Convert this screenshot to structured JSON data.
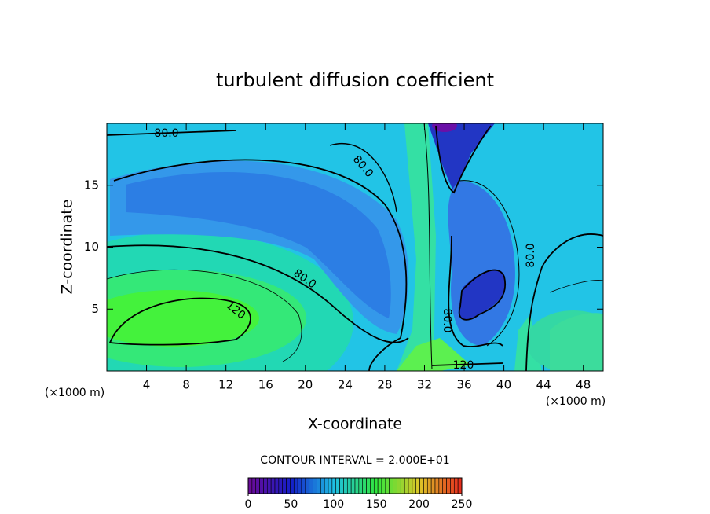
{
  "chart_data": {
    "type": "contour",
    "title": "turbulent diffusion coefficient",
    "x_label": "X-coordinate",
    "y_label": "Z-coordinate",
    "x_unit_labels": [
      "(×1000 m)",
      "(×1000 m)"
    ],
    "xlim": [
      0,
      50
    ],
    "xticks": [
      4,
      8,
      12,
      16,
      20,
      24,
      28,
      32,
      36,
      40,
      44,
      48
    ],
    "ylim": [
      0,
      20
    ],
    "yticks": [
      5,
      10,
      15
    ],
    "contour_labels": [
      "80.0",
      "80.0",
      "80.0",
      "120",
      "80.0",
      "120",
      "80.0"
    ],
    "contour_interval": "CONTOUR INTERVAL = 2.000E+01",
    "colorbar": {
      "lim": [
        0,
        250
      ],
      "ticks": [
        0,
        50,
        100,
        150,
        200,
        250
      ]
    }
  }
}
